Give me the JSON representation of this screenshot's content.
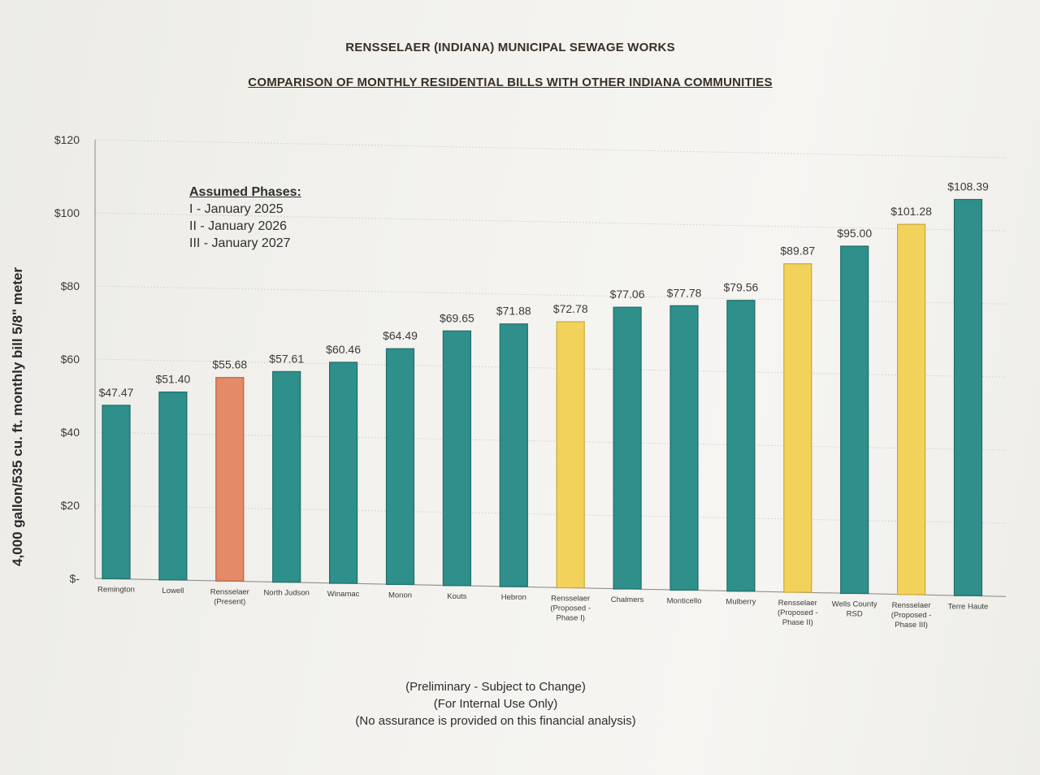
{
  "title": "RENSSELAER (INDIANA) MUNICIPAL SEWAGE WORKS",
  "subtitle": "COMPARISON OF MONTHLY RESIDENTIAL BILLS WITH OTHER INDIANA COMMUNITIES",
  "phases": {
    "heading": "Assumed Phases:",
    "items": [
      "I - January 2025",
      "II - January 2026",
      "III - January 2027"
    ]
  },
  "footnotes": [
    "(Preliminary - Subject to Change)",
    "(For Internal Use Only)",
    "(No assurance is provided on this financial analysis)"
  ],
  "colors": {
    "existing": "#2f8f8a",
    "present": "#e58a68",
    "proposed": "#f2d25a"
  },
  "chart_data": {
    "type": "bar",
    "ylabel": "4,000 gallon/535 cu. ft. monthly bill 5/8\" meter",
    "xlabel": "",
    "ylim": [
      0,
      120
    ],
    "y_ticks": [
      {
        "value": 0,
        "label": "$-"
      },
      {
        "value": 20,
        "label": "$20"
      },
      {
        "value": 40,
        "label": "$40"
      },
      {
        "value": 60,
        "label": "$60"
      },
      {
        "value": 80,
        "label": "$80"
      },
      {
        "value": 100,
        "label": "$100"
      },
      {
        "value": 120,
        "label": "$120"
      }
    ],
    "grid": true,
    "legend": "none",
    "bars": [
      {
        "category": [
          "Remington"
        ],
        "value": 47.47,
        "label": "$47.47",
        "group": "existing"
      },
      {
        "category": [
          "Lowell"
        ],
        "value": 51.4,
        "label": "$51.40",
        "group": "existing"
      },
      {
        "category": [
          "Rensselaer",
          "(Present)"
        ],
        "value": 55.68,
        "label": "$55.68",
        "group": "present"
      },
      {
        "category": [
          "North Judson"
        ],
        "value": 57.61,
        "label": "$57.61",
        "group": "existing"
      },
      {
        "category": [
          "Winamac"
        ],
        "value": 60.46,
        "label": "$60.46",
        "group": "existing"
      },
      {
        "category": [
          "Monon"
        ],
        "value": 64.49,
        "label": "$64.49",
        "group": "existing"
      },
      {
        "category": [
          "Kouts"
        ],
        "value": 69.65,
        "label": "$69.65",
        "group": "existing"
      },
      {
        "category": [
          "Hebron"
        ],
        "value": 71.88,
        "label": "$71.88",
        "group": "existing"
      },
      {
        "category": [
          "Rensselaer",
          "(Proposed -",
          "Phase I)"
        ],
        "value": 72.78,
        "label": "$72.78",
        "group": "proposed"
      },
      {
        "category": [
          "Chalmers"
        ],
        "value": 77.06,
        "label": "$77.06",
        "group": "existing"
      },
      {
        "category": [
          "Monticello"
        ],
        "value": 77.78,
        "label": "$77.78",
        "group": "existing"
      },
      {
        "category": [
          "Mulberry"
        ],
        "value": 79.56,
        "label": "$79.56",
        "group": "existing"
      },
      {
        "category": [
          "Rensselaer",
          "(Proposed -",
          "Phase II)"
        ],
        "value": 89.87,
        "label": "$89.87",
        "group": "proposed"
      },
      {
        "category": [
          "Wells County",
          "RSD"
        ],
        "value": 95.0,
        "label": "$95.00",
        "group": "existing"
      },
      {
        "category": [
          "Rensselaer",
          "(Proposed -",
          "Phase III)"
        ],
        "value": 101.28,
        "label": "$101.28",
        "group": "proposed"
      },
      {
        "category": [
          "Terre Haute"
        ],
        "value": 108.39,
        "label": "$108.39",
        "group": "existing"
      }
    ]
  }
}
